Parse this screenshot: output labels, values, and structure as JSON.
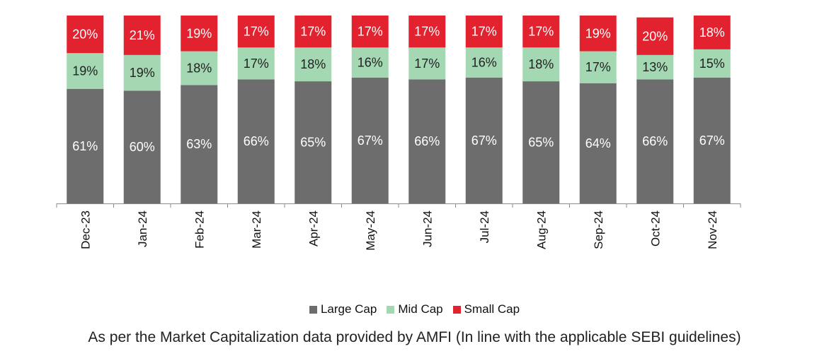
{
  "chart_data": {
    "type": "bar",
    "stacked": true,
    "categories": [
      "Dec-23",
      "Jan-24",
      "Feb-24",
      "Mar-24",
      "Apr-24",
      "May-24",
      "Jun-24",
      "Jul-24",
      "Aug-24",
      "Sep-24",
      "Oct-24",
      "Nov-24"
    ],
    "series": [
      {
        "name": "Large Cap",
        "color": "#6d6d6d",
        "values": [
          61,
          60,
          63,
          66,
          65,
          67,
          66,
          67,
          65,
          64,
          66,
          67
        ],
        "labels": [
          "61%",
          "60%",
          "63%",
          "66%",
          "65%",
          "67%",
          "66%",
          "67%",
          "65%",
          "64%",
          "66%",
          "67%"
        ]
      },
      {
        "name": "Mid Cap",
        "color": "#a4d8b2",
        "values": [
          19,
          19,
          18,
          17,
          18,
          16,
          17,
          16,
          18,
          17,
          13,
          15
        ],
        "labels": [
          "19%",
          "19%",
          "18%",
          "17%",
          "18%",
          "16%",
          "17%",
          "16%",
          "18%",
          "17%",
          "13%",
          "15%"
        ]
      },
      {
        "name": "Small Cap",
        "color": "#e32230",
        "values": [
          20,
          21,
          19,
          17,
          17,
          17,
          17,
          17,
          17,
          19,
          20,
          18
        ],
        "labels": [
          "20%",
          "21%",
          "19%",
          "17%",
          "17%",
          "17%",
          "17%",
          "17%",
          "17%",
          "19%",
          "20%",
          "18%"
        ]
      }
    ],
    "ylim": [
      0,
      100
    ],
    "grid": false,
    "legend_position": "bottom"
  },
  "footnote": "As per the Market Capitalization data provided by AMFI (In line with the applicable SEBI guidelines)"
}
